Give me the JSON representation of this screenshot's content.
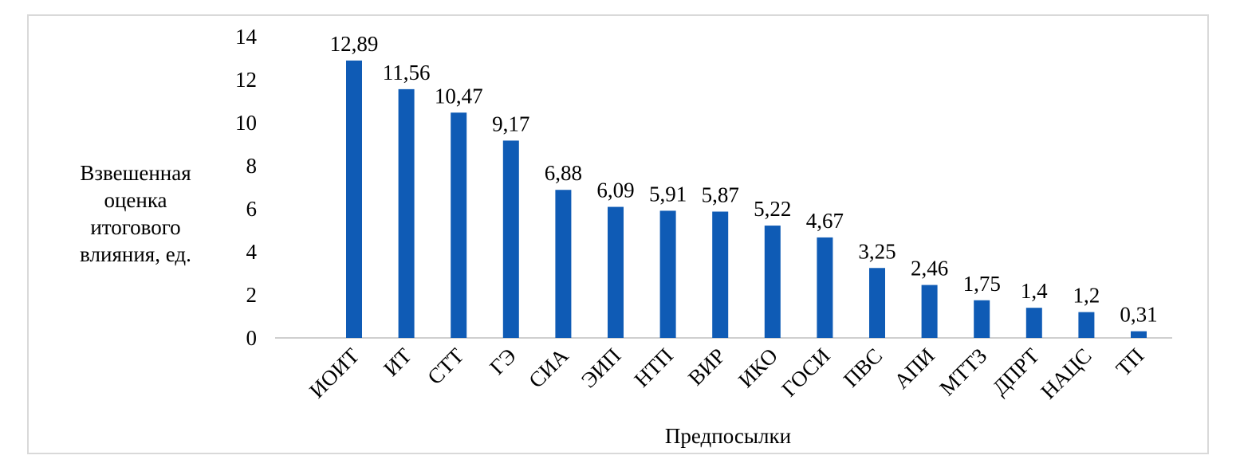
{
  "chart_data": {
    "type": "bar",
    "categories": [
      "ИОИТ",
      "ИТ",
      "СТТ",
      "ГЭ",
      "СИА",
      "ЭИП",
      "НТП",
      "ВИР",
      "ИКО",
      "ГОСИ",
      "ПВС",
      "АПИ",
      "МТТЗ",
      "ДПРТ",
      "НАЦС",
      "ТП"
    ],
    "values": [
      12.89,
      11.56,
      10.47,
      9.17,
      6.88,
      6.09,
      5.91,
      5.87,
      5.22,
      4.67,
      3.25,
      2.46,
      1.75,
      1.4,
      1.2,
      0.31
    ],
    "value_labels": [
      "12,89",
      "11,56",
      "10,47",
      "9,17",
      "6,88",
      "6,09",
      "5,91",
      "5,87",
      "5,22",
      "4,67",
      "3,25",
      "2,46",
      "1,75",
      "1,4",
      "1,2",
      "0,31"
    ],
    "ylabel_lines": [
      "Взвешенная",
      "оценка",
      "итогового",
      "влияния, ед."
    ],
    "xlabel": "Предпосылки",
    "ylim": [
      0,
      14
    ],
    "yticks": [
      "0",
      "2",
      "4",
      "6",
      "8",
      "10",
      "12",
      "14"
    ],
    "grid": false,
    "legend": "none",
    "bar_color": "#0f5bb5",
    "axis_color": "#bfbfbf"
  }
}
